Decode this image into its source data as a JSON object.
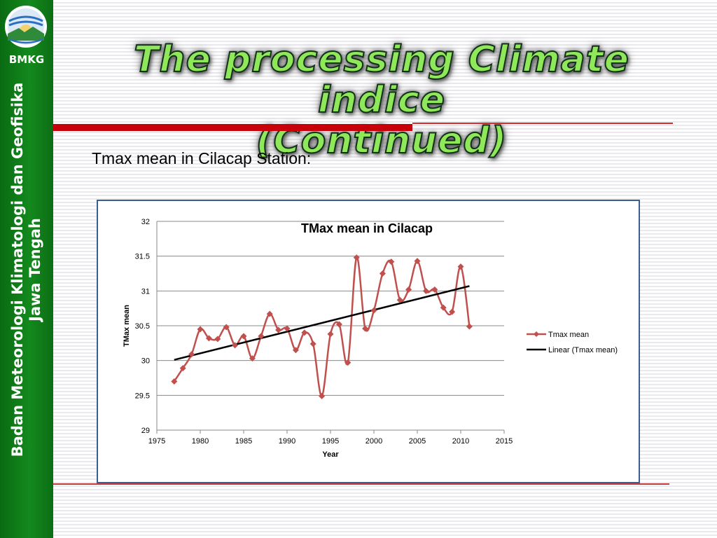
{
  "sidebar": {
    "abbr": "BMKG",
    "org_line1": "Badan Meteorologi Klimatologi dan Geofisika",
    "org_line2": "Jawa Tengah"
  },
  "slide": {
    "title_line1": "The processing Climate indice",
    "title_line2": "(Continued)",
    "subtitle": "Tmax mean in Cilacap Station:"
  },
  "colors": {
    "series": "#c0504d",
    "trend": "#000000",
    "sidebar": "#13891d",
    "title_fill": "#8fe85a",
    "accent_red": "#c8000a"
  },
  "chart_data": {
    "type": "line",
    "title": "TMax mean in Cilacap",
    "xlabel": "Year",
    "ylabel": "TMax mean",
    "xlim": [
      1975,
      2015
    ],
    "ylim": [
      29,
      32
    ],
    "xticks": [
      1975,
      1980,
      1985,
      1990,
      1995,
      2000,
      2005,
      2010,
      2015
    ],
    "yticks": [
      29,
      29.5,
      30,
      30.5,
      31,
      31.5,
      32
    ],
    "grid": true,
    "legend_position": "right",
    "series": [
      {
        "name": "Tmax mean",
        "marker": "diamond",
        "x": [
          1977,
          1978,
          1979,
          1980,
          1981,
          1982,
          1983,
          1984,
          1985,
          1986,
          1987,
          1988,
          1989,
          1990,
          1991,
          1992,
          1993,
          1994,
          1995,
          1996,
          1997,
          1998,
          1999,
          2000,
          2001,
          2002,
          2003,
          2004,
          2005,
          2006,
          2007,
          2008,
          2009,
          2010,
          2011
        ],
        "y": [
          29.7,
          29.89,
          30.09,
          30.45,
          30.32,
          30.31,
          30.48,
          30.22,
          30.35,
          30.03,
          30.35,
          30.67,
          30.44,
          30.46,
          30.15,
          30.4,
          30.24,
          29.49,
          30.38,
          30.52,
          29.97,
          31.48,
          30.46,
          30.72,
          31.25,
          31.42,
          30.87,
          31.02,
          31.43,
          31.0,
          31.02,
          30.76,
          30.7,
          31.35,
          30.49
        ]
      },
      {
        "name": "Linear (Tmax mean)",
        "type": "trend",
        "x": [
          1977,
          2011
        ],
        "y": [
          30.01,
          31.07
        ]
      }
    ]
  }
}
